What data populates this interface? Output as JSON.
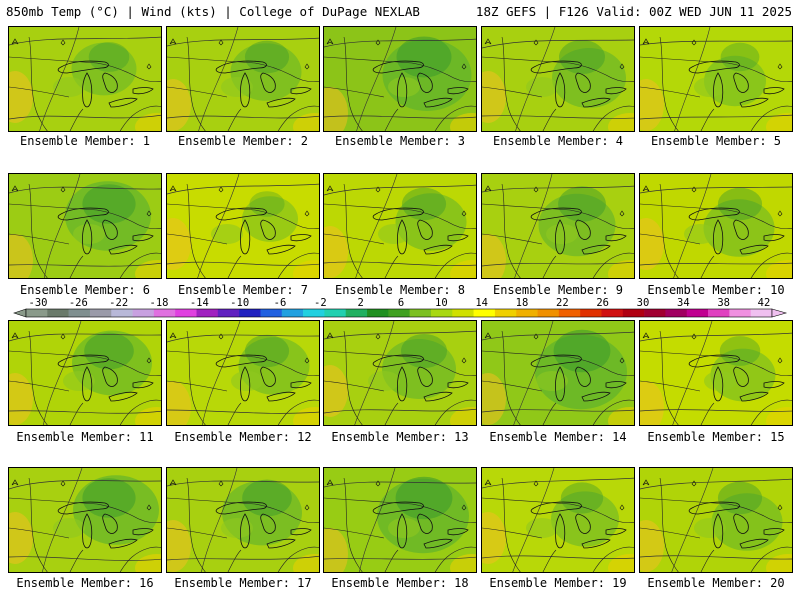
{
  "header": {
    "left": "850mb Temp (°C) | Wind (kts) | College of DuPage NEXLAB",
    "right": "18Z GEFS | F126 Valid: 00Z WED JUN 11 2025"
  },
  "colorbar": {
    "labels": [
      "-30",
      "-26",
      "-22",
      "-18",
      "-14",
      "-10",
      "-6",
      "-2",
      "2",
      "6",
      "10",
      "14",
      "18",
      "22",
      "26",
      "30",
      "34",
      "38",
      "42"
    ],
    "colors": [
      "#8a9a8a",
      "#6a7a6a",
      "#7f8f8f",
      "#9a9aa8",
      "#b8b8d8",
      "#c8a0e0",
      "#e070e0",
      "#e040e0",
      "#a020c0",
      "#6020c0",
      "#2020c0",
      "#2060e0",
      "#20a0e0",
      "#20d0e0",
      "#20d0b0",
      "#20b060",
      "#209020",
      "#40a020",
      "#7cc020",
      "#a8d810",
      "#d0e000",
      "#ffff00",
      "#f0d000",
      "#f0b000",
      "#f09000",
      "#f06000",
      "#e03000",
      "#d01010",
      "#b00010",
      "#a00030",
      "#a00060",
      "#c00090",
      "#e040c0",
      "#f090e0",
      "#f0c0f0"
    ]
  },
  "panels": [
    {
      "caption": "Ensemble Member: 1",
      "base": "#a8d010",
      "green": 0.35
    },
    {
      "caption": "Ensemble Member: 2",
      "base": "#a8d010",
      "green": 0.45
    },
    {
      "caption": "Ensemble Member: 3",
      "base": "#8cc418",
      "green": 0.75
    },
    {
      "caption": "Ensemble Member: 4",
      "base": "#a8d010",
      "green": 0.5
    },
    {
      "caption": "Ensemble Member: 5",
      "base": "#b4d808",
      "green": 0.3
    },
    {
      "caption": "Ensemble Member: 6",
      "base": "#9ccc14",
      "green": 0.7
    },
    {
      "caption": "Ensemble Member: 7",
      "base": "#c8dc00",
      "green": 0.2
    },
    {
      "caption": "Ensemble Member: 8",
      "base": "#bcd804",
      "green": 0.45
    },
    {
      "caption": "Ensemble Member: 9",
      "base": "#a8d010",
      "green": 0.55
    },
    {
      "caption": "Ensemble Member: 10",
      "base": "#c0d800",
      "green": 0.45
    },
    {
      "caption": "Ensemble Member: 11",
      "base": "#b0d408",
      "green": 0.6
    },
    {
      "caption": "Ensemble Member: 12",
      "base": "#b8d808",
      "green": 0.45
    },
    {
      "caption": "Ensemble Member: 13",
      "base": "#a8d010",
      "green": 0.5
    },
    {
      "caption": "Ensemble Member: 14",
      "base": "#90c818",
      "green": 0.8
    },
    {
      "caption": "Ensemble Member: 15",
      "base": "#c4dc00",
      "green": 0.35
    },
    {
      "caption": "Ensemble Member: 16",
      "base": "#a8d010",
      "green": 0.7
    },
    {
      "caption": "Ensemble Member: 17",
      "base": "#a8d010",
      "green": 0.6
    },
    {
      "caption": "Ensemble Member: 18",
      "base": "#98cc14",
      "green": 0.8
    },
    {
      "caption": "Ensemble Member: 19",
      "base": "#b8d808",
      "green": 0.4
    },
    {
      "caption": "Ensemble Member: 20",
      "base": "#b0d408",
      "green": 0.45
    }
  ]
}
